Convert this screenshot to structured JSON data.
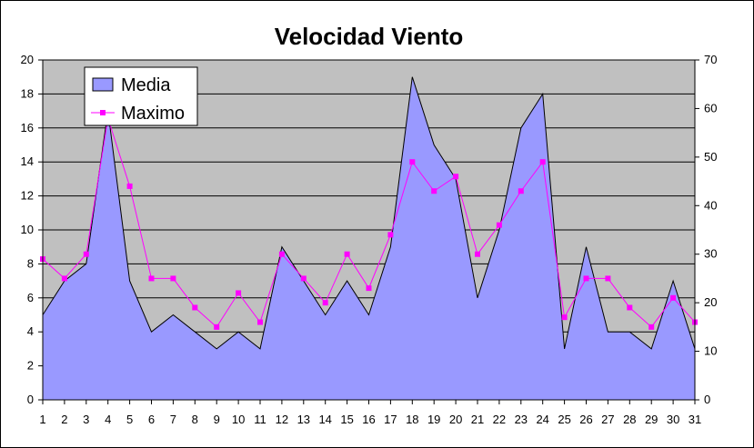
{
  "chart_data": {
    "type": "area",
    "title": "Velocidad Viento",
    "x": [
      1,
      2,
      3,
      4,
      5,
      6,
      7,
      8,
      9,
      10,
      11,
      12,
      13,
      14,
      15,
      16,
      17,
      18,
      19,
      20,
      21,
      22,
      23,
      24,
      25,
      26,
      27,
      28,
      29,
      30,
      31
    ],
    "series": [
      {
        "name": "Media",
        "type": "area",
        "axis": "left",
        "color": "#9999ff",
        "values": [
          5,
          7,
          8,
          17,
          7,
          4,
          5,
          4,
          3,
          4,
          3,
          9,
          7,
          5,
          7,
          5,
          9,
          19,
          15,
          13,
          6,
          10,
          16,
          18,
          3,
          9,
          4,
          4,
          3,
          7,
          3
        ]
      },
      {
        "name": "Maximo",
        "type": "line",
        "axis": "right",
        "color": "#ff00ff",
        "values": [
          29,
          25,
          30,
          58,
          44,
          25,
          25,
          19,
          15,
          22,
          16,
          30,
          25,
          20,
          30,
          23,
          34,
          49,
          43,
          46,
          30,
          36,
          43,
          49,
          17,
          25,
          25,
          19,
          15,
          21,
          16
        ]
      }
    ],
    "y_left": {
      "min": 0,
      "max": 20,
      "step": 2
    },
    "y_right": {
      "min": 0,
      "max": 70,
      "step": 10
    },
    "grid": true,
    "plot_background": "#c0c0c0",
    "legend_position": "top-left"
  }
}
